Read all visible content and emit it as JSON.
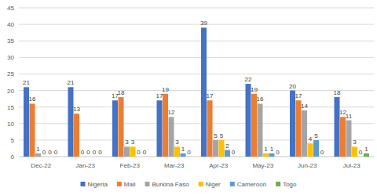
{
  "chart_data": {
    "type": "bar",
    "categories": [
      "Dec-22",
      "Jan-23",
      "Feb-23",
      "Mar-23",
      "Apr-23",
      "May-23",
      "Jun-23",
      "Jul-23"
    ],
    "series": [
      {
        "name": "Nigeria",
        "color": "#4472c4",
        "values": [
          21,
          21,
          17,
          17,
          39,
          22,
          20,
          18
        ]
      },
      {
        "name": "Mali",
        "color": "#ed7d31",
        "values": [
          16,
          13,
          18,
          19,
          17,
          19,
          17,
          12
        ]
      },
      {
        "name": "Burkina Faso",
        "color": "#a5a5a5",
        "values": [
          1,
          0,
          3,
          12,
          5,
          16,
          14,
          11
        ]
      },
      {
        "name": "Niger",
        "color": "#ffc000",
        "values": [
          0,
          0,
          3,
          3,
          5,
          1,
          4,
          3
        ]
      },
      {
        "name": "Cameroon",
        "color": "#5b9bd5",
        "values": [
          0,
          0,
          0,
          1,
          2,
          1,
          5,
          0
        ]
      },
      {
        "name": "Togo",
        "color": "#70ad47",
        "values": [
          0,
          0,
          0,
          0,
          0,
          0,
          0,
          1
        ]
      }
    ],
    "ylim": [
      0,
      45
    ],
    "yticks": [
      0,
      5,
      10,
      15,
      20,
      25,
      30,
      35,
      40,
      45
    ],
    "grid": true,
    "data_labels": true,
    "legend": "bottom"
  }
}
